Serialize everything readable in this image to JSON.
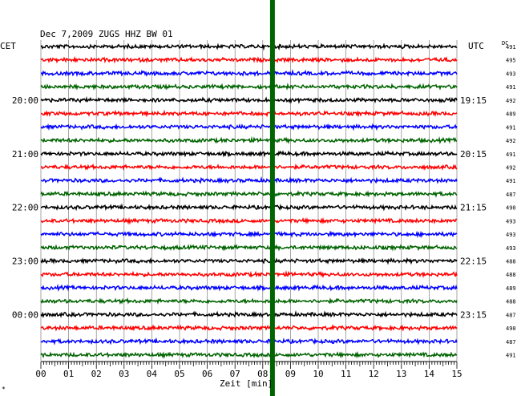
{
  "chart_data": {
    "type": "line",
    "title": "Dec 7,2009   ZUGS HHZ BW 01",
    "left_label": "CET",
    "right_label": "UTC",
    "dc_label": "DC",
    "xlabel": "Zeit [min]",
    "corner_mark": "*",
    "xlim": [
      0,
      15
    ],
    "x_ticks": [
      "00",
      "01",
      "02",
      "03",
      "04",
      "05",
      "06",
      "07",
      "08",
      "09",
      "10",
      "11",
      "12",
      "13",
      "14",
      "15"
    ],
    "trace_colors": [
      "#000000",
      "#ff0000",
      "#0000ff",
      "#006400"
    ],
    "marker": {
      "x_min": 8.35,
      "color": "#006400"
    },
    "hour_labels_left": [
      {
        "trace": 4,
        "label": "20:00"
      },
      {
        "trace": 8,
        "label": "21:00"
      },
      {
        "trace": 12,
        "label": "22:00"
      },
      {
        "trace": 16,
        "label": "23:00"
      },
      {
        "trace": 20,
        "label": "00:00"
      }
    ],
    "hour_labels_right": [
      {
        "trace": 4,
        "label": "19:15"
      },
      {
        "trace": 8,
        "label": "20:15"
      },
      {
        "trace": 12,
        "label": "21:15"
      },
      {
        "trace": 16,
        "label": "22:15"
      },
      {
        "trace": 20,
        "label": "23:15"
      }
    ],
    "dc_offsets": [
      "491",
      "495",
      "493",
      "491",
      "492",
      "489",
      "491",
      "492",
      "491",
      "492",
      "491",
      "487",
      "490",
      "493",
      "493",
      "493",
      "488",
      "488",
      "489",
      "488",
      "487",
      "490",
      "487",
      "491"
    ]
  }
}
